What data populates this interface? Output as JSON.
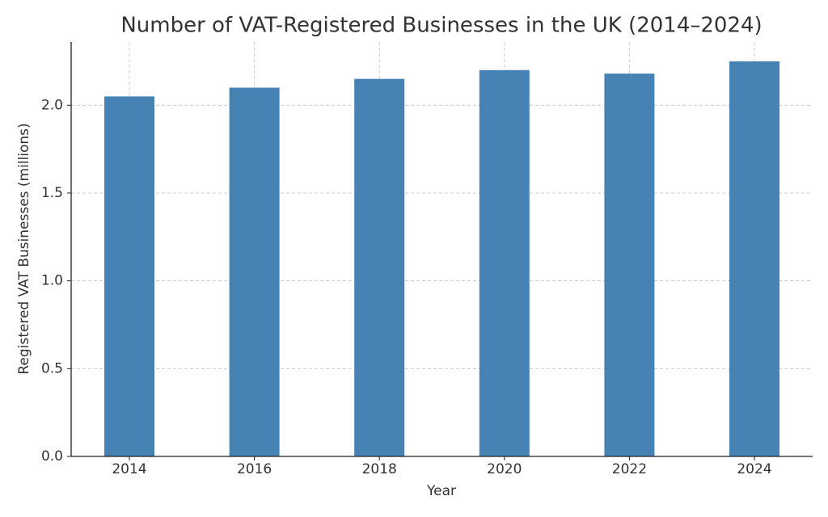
{
  "chart_data": {
    "type": "bar",
    "title": "Number of VAT-Registered Businesses in the UK (2014–2024)",
    "x_label": "Year",
    "y_label": "Registered VAT Businesses (millions)",
    "categories": [
      "2014",
      "2016",
      "2018",
      "2020",
      "2022",
      "2024"
    ],
    "values": [
      2.05,
      2.1,
      2.15,
      2.2,
      2.18,
      2.25
    ],
    "color": "#4682b4",
    "ylim": [
      0,
      2.36
    ],
    "yticks": [
      {
        "value": 0,
        "label": "0.0"
      },
      {
        "value": 0.5,
        "label": "0.5"
      },
      {
        "value": 1,
        "label": "1.0"
      },
      {
        "value": 1.5,
        "label": "1.5"
      },
      {
        "value": 2,
        "label": "2.0"
      }
    ],
    "grid": true
  }
}
